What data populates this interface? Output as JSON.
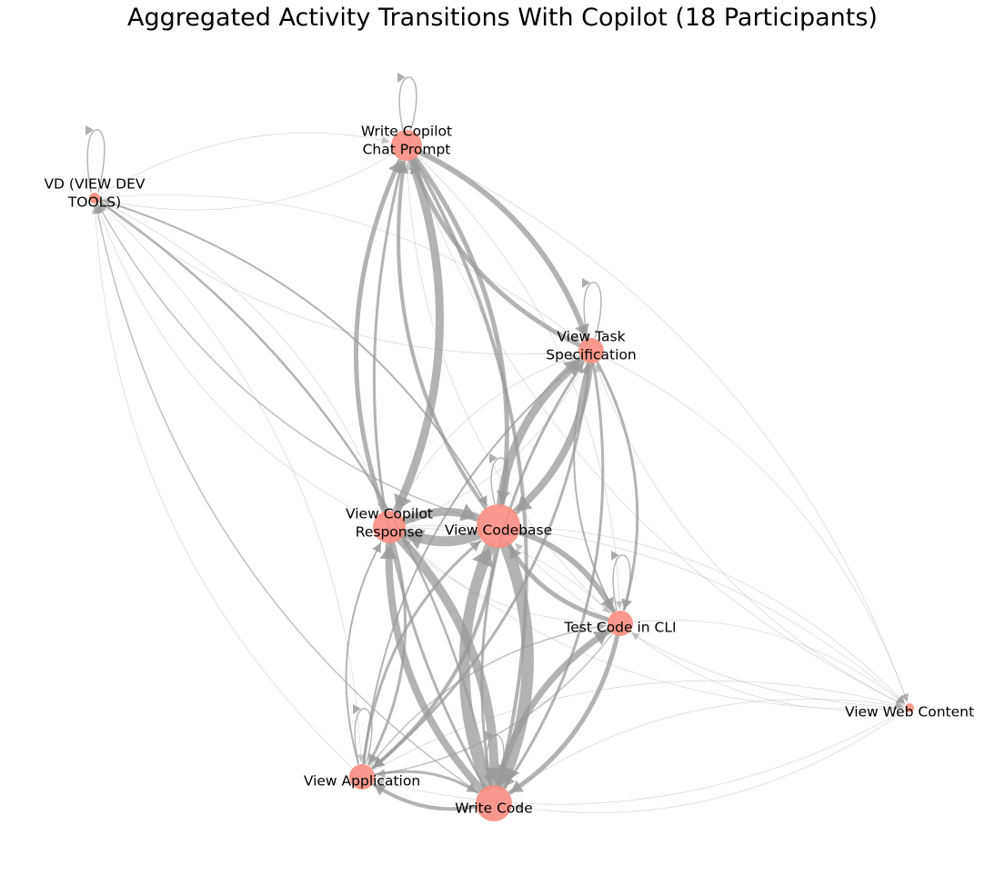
{
  "title": "Aggregated Activity Transitions With Copilot (18 Participants)",
  "colors": {
    "node": "#f88a7c",
    "edge": "#9a9a9a",
    "text": "#000000",
    "background": "#ffffff"
  },
  "nodes": [
    {
      "id": "prompt",
      "label": [
        "Write Copilot",
        "Chat Prompt"
      ]
    },
    {
      "id": "vd",
      "label": [
        "VD (VIEW DEV",
        "TOOLS)"
      ]
    },
    {
      "id": "task",
      "label": [
        "View Task",
        "Specification"
      ]
    },
    {
      "id": "resp",
      "label": [
        "View Copilot",
        "Response"
      ]
    },
    {
      "id": "codebase",
      "label": [
        "View Codebase"
      ]
    },
    {
      "id": "test",
      "label": [
        "Test Code in CLI"
      ]
    },
    {
      "id": "web",
      "label": [
        "View Web Content"
      ]
    },
    {
      "id": "app",
      "label": [
        "View Application"
      ]
    },
    {
      "id": "write",
      "label": [
        "Write Code"
      ]
    }
  ],
  "self_loops": [
    "prompt",
    "vd",
    "task",
    "codebase",
    "test",
    "app",
    "write"
  ],
  "edges": [
    [
      "codebase",
      "write"
    ],
    [
      "write",
      "codebase"
    ],
    [
      "codebase",
      "resp"
    ],
    [
      "resp",
      "codebase"
    ],
    [
      "prompt",
      "resp"
    ],
    [
      "resp",
      "prompt"
    ],
    [
      "resp",
      "write"
    ],
    [
      "write",
      "resp"
    ],
    [
      "codebase",
      "task"
    ],
    [
      "task",
      "codebase"
    ],
    [
      "write",
      "test"
    ],
    [
      "test",
      "write"
    ],
    [
      "codebase",
      "test"
    ],
    [
      "test",
      "codebase"
    ],
    [
      "task",
      "prompt"
    ],
    [
      "prompt",
      "task"
    ],
    [
      "prompt",
      "codebase"
    ],
    [
      "codebase",
      "prompt"
    ],
    [
      "prompt",
      "write"
    ],
    [
      "write",
      "prompt"
    ],
    [
      "task",
      "write"
    ],
    [
      "write",
      "task"
    ],
    [
      "codebase",
      "app"
    ],
    [
      "app",
      "codebase"
    ],
    [
      "write",
      "app"
    ],
    [
      "app",
      "write"
    ],
    [
      "task",
      "test"
    ],
    [
      "test",
      "task"
    ],
    [
      "resp",
      "app"
    ],
    [
      "app",
      "resp"
    ],
    [
      "task",
      "app"
    ],
    [
      "app",
      "task"
    ],
    [
      "vd",
      "codebase"
    ],
    [
      "codebase",
      "vd"
    ],
    [
      "vd",
      "write"
    ],
    [
      "write",
      "vd"
    ],
    [
      "vd",
      "prompt"
    ],
    [
      "prompt",
      "vd"
    ],
    [
      "vd",
      "resp"
    ],
    [
      "resp",
      "vd"
    ],
    [
      "vd",
      "app"
    ],
    [
      "app",
      "vd"
    ],
    [
      "vd",
      "task"
    ],
    [
      "task",
      "vd"
    ],
    [
      "test",
      "app"
    ],
    [
      "app",
      "test"
    ],
    [
      "test",
      "resp"
    ],
    [
      "resp",
      "test"
    ],
    [
      "web",
      "codebase"
    ],
    [
      "codebase",
      "web"
    ],
    [
      "web",
      "write"
    ],
    [
      "write",
      "web"
    ],
    [
      "web",
      "test"
    ],
    [
      "test",
      "web"
    ],
    [
      "web",
      "task"
    ],
    [
      "task",
      "web"
    ],
    [
      "web",
      "app"
    ],
    [
      "app",
      "web"
    ],
    [
      "web",
      "prompt"
    ],
    [
      "prompt",
      "web"
    ],
    [
      "web",
      "resp"
    ],
    [
      "resp",
      "web"
    ],
    [
      "task",
      "resp"
    ],
    [
      "resp",
      "task"
    ],
    [
      "prompt",
      "test"
    ],
    [
      "test",
      "prompt"
    ]
  ]
}
